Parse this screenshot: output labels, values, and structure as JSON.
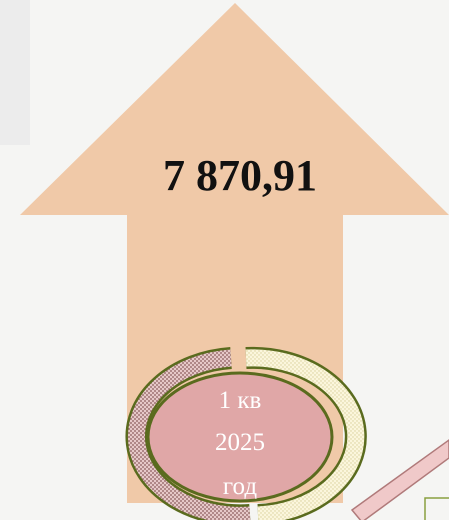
{
  "value": "7 870,91",
  "period": [
    "1 кв",
    "2025",
    "год"
  ]
}
